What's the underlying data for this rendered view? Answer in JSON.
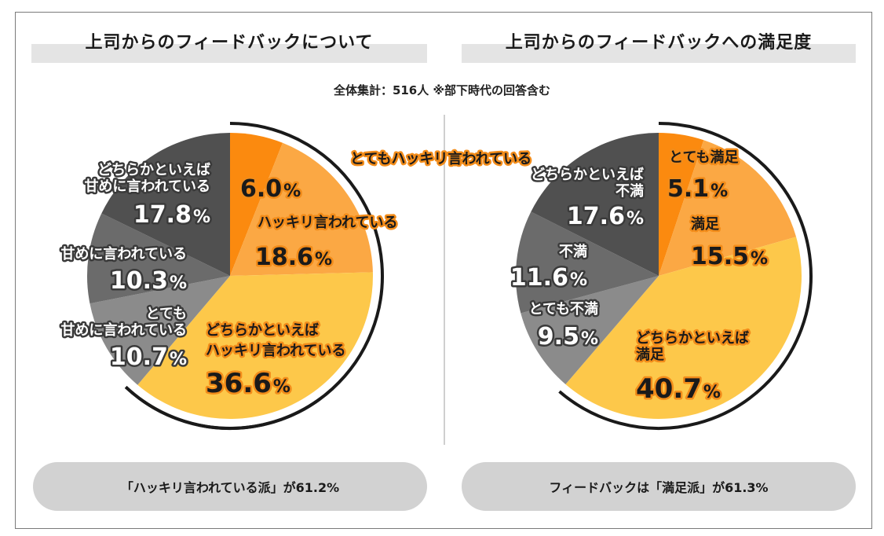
{
  "left_title": "上司からのフィードバックについて",
  "right_title": "上司からのフィードバックへの満足度",
  "subtitle": "全体集計：516人 ※部下時代の回答含む",
  "left_summary": "「ハッキリ言われている派」が61.2%",
  "right_summary": "フィードバックは「満足派」が61.3%",
  "chart_data": [
    {
      "type": "pie",
      "title": "上司からのフィードバックについて",
      "slices": [
        {
          "label": "とてもハッキリ言われている",
          "value": 6.0,
          "value_label": "6.0",
          "color": "#fb8a0f"
        },
        {
          "label": "ハッキリ言われている",
          "value": 18.6,
          "value_label": "18.6",
          "color": "#fba844"
        },
        {
          "label": "どちらかといえば ハッキリ言われている",
          "value": 36.6,
          "value_label": "36.6",
          "color": "#fdc84a"
        },
        {
          "label": "とても 甘めに言われている",
          "value": 10.7,
          "value_label": "10.7",
          "color": "#8b8b8b"
        },
        {
          "label": "甘めに言われている",
          "value": 10.3,
          "value_label": "10.3",
          "color": "#6b6b6b"
        },
        {
          "label": "どちらかといえば 甘めに言われている",
          "value": 17.8,
          "value_label": "17.8",
          "color": "#505050"
        }
      ],
      "unit": "%"
    },
    {
      "type": "pie",
      "title": "上司からのフィードバックへの満足度",
      "slices": [
        {
          "label": "とても満足",
          "value": 5.1,
          "value_label": "5.1",
          "color": "#fb8a0f"
        },
        {
          "label": "満足",
          "value": 15.5,
          "value_label": "15.5",
          "color": "#fba844"
        },
        {
          "label": "どちらかといえば 満足",
          "value": 40.7,
          "value_label": "40.7",
          "color": "#fdc84a"
        },
        {
          "label": "とても不満",
          "value": 9.5,
          "value_label": "9.5",
          "color": "#8b8b8b"
        },
        {
          "label": "不満",
          "value": 11.6,
          "value_label": "11.6",
          "color": "#6b6b6b"
        },
        {
          "label": "どちらかといえば 不満",
          "value": 17.6,
          "value_label": "17.6",
          "color": "#505050"
        }
      ],
      "unit": "%"
    }
  ]
}
